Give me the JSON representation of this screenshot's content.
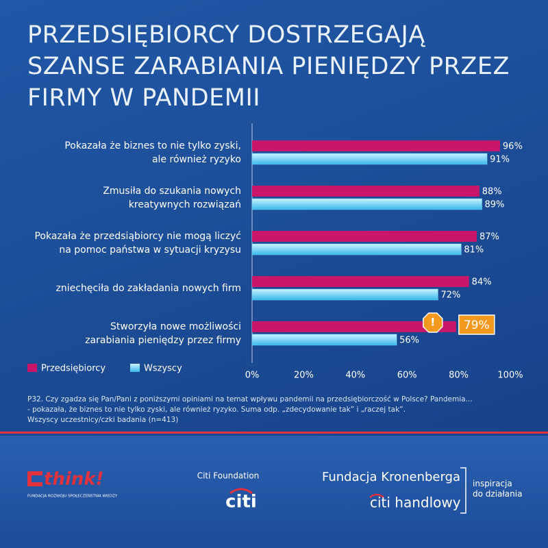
{
  "chart_data": {
    "type": "bar",
    "title": "PRZEDSIĘBIORCY DOSTRZEGAJĄ\nSZANSE ZARABIANIA PIENIĘDZY PRZEZ\nFIRMY W PANDEMII",
    "categories": [
      "Pokazała że biznes to nie tylko zyski,\nale również ryzyko",
      "Zmusiła do szukania nowych\nkreatywnych rozwiązań",
      "Pokazała że przedsiąbiorcy nie mogą liczyć\nna pomoc państwa w sytuacji kryzysu",
      "zniechęciła do zakładania nowych firm",
      "Stworzyła nowe możliwości\nzarabiania pieniędzy przez firmy"
    ],
    "series": [
      {
        "name": "Przedsiębiorcy",
        "color": "#c8176b",
        "values": [
          96,
          88,
          87,
          84,
          79
        ],
        "value_labels": [
          "96%",
          "88%",
          "87%",
          "84%",
          "79%"
        ]
      },
      {
        "name": "Wszyscy",
        "color": "#6fd6f7",
        "values": [
          91,
          89,
          81,
          72,
          56
        ],
        "value_labels": [
          "91%",
          "89%",
          "81%",
          "72%",
          "56%"
        ]
      }
    ],
    "highlight": 4,
    "xlim": [
      0,
      100
    ],
    "xticks": [
      {
        "value": 0,
        "label": "0%"
      },
      {
        "value": 20,
        "label": "20%"
      },
      {
        "value": 40,
        "label": "40%"
      },
      {
        "value": 60,
        "label": "60%"
      },
      {
        "value": 80,
        "label": "80%"
      },
      {
        "value": 100,
        "label": "100%"
      }
    ],
    "grid": false
  },
  "footnote": "P32. Czy zgadza się Pan/Pani z poniższymi opiniami na temat wpływu pandemii na przedsiębiorczość w Polsce? Pandemia...\n- pokazała, że biznes to nie tylko zyski, ale również ryzyko. Suma odp. „zdecydowanie tak” i „raczej tak”.\nWszyscy uczestnicy/czki badania (n=413)",
  "logos": {
    "think": "think!",
    "think_subtitle": "FUNDACJA ROZWOJU SPOŁECZEŃSTWA WIEDZY",
    "citi_foundation": "Citi Foundation",
    "citi": "citi",
    "kronenberg": "Fundacja Kronenberga",
    "citi_handlowy": "citi handlowy",
    "slogan": "inspiracja\ndo działania"
  }
}
